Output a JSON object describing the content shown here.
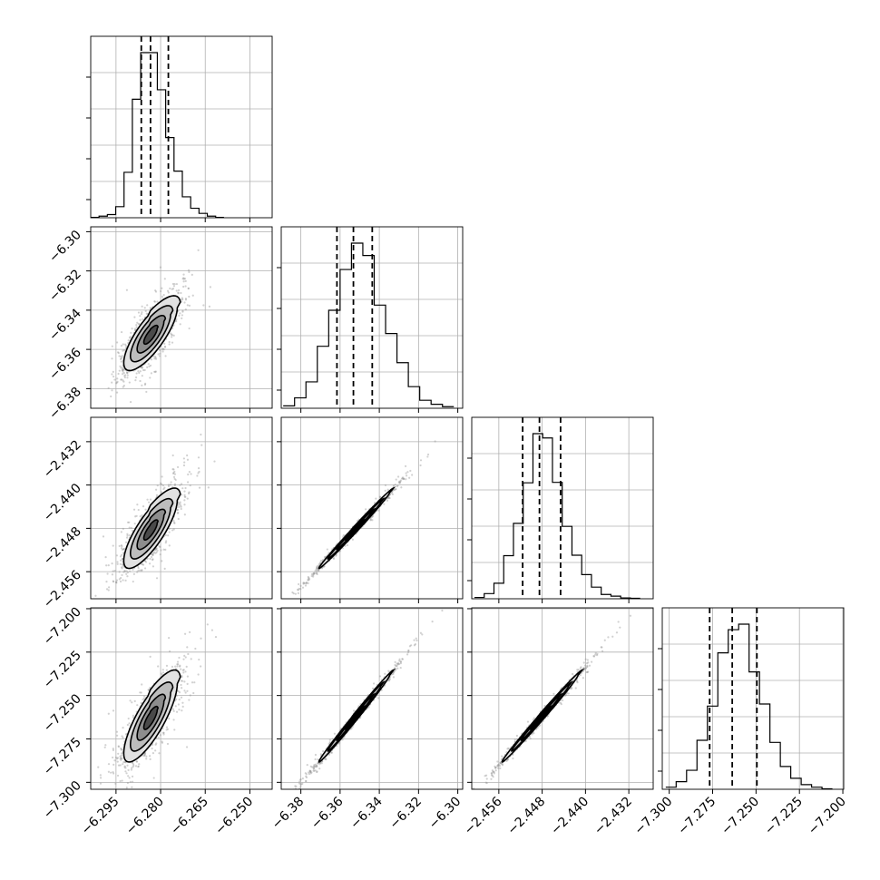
{
  "chart_data": {
    "type": "corner",
    "n_params": 4,
    "grid": true,
    "params": [
      {
        "range": [
          -6.3035,
          -6.2425
        ],
        "ticks": [
          -6.295,
          -6.28,
          -6.265,
          -6.25
        ],
        "tick_labels": [
          "−6.295",
          "−6.280",
          "−6.265",
          "−6.250"
        ],
        "quantiles": [
          -6.2865,
          -6.2834,
          -6.2774
        ],
        "mean": -6.2834,
        "std": 0.0045
      },
      {
        "range": [
          -6.39,
          -6.2975
        ],
        "ticks": [
          -6.38,
          -6.36,
          -6.34,
          -6.32,
          -6.3
        ],
        "tick_labels": [
          "−6.38",
          "−6.36",
          "−6.34",
          "−6.32",
          "−6.30"
        ],
        "quantiles": [
          -6.3616,
          -6.3532,
          -6.3436
        ],
        "mean": -6.3528,
        "std": 0.009
      },
      {
        "range": [
          -2.461,
          -2.4275
        ],
        "ticks": [
          -2.456,
          -2.448,
          -2.44,
          -2.432
        ],
        "tick_labels": [
          "−2.456",
          "−2.448",
          "−2.440",
          "−2.432"
        ],
        "quantiles": [
          -2.4516,
          -2.4485,
          -2.4446
        ],
        "mean": -2.4484,
        "std": 0.0035
      },
      {
        "range": [
          -7.304,
          -7.1995
        ],
        "ticks": [
          -7.3,
          -7.275,
          -7.25,
          -7.225,
          -7.2
        ],
        "tick_labels": [
          "−7.300",
          "−7.275",
          "−7.250",
          "−7.225",
          "−7.200"
        ],
        "quantiles": [
          -7.2767,
          -7.2637,
          -7.2495
        ],
        "mean": -7.2633,
        "std": 0.0125
      }
    ],
    "y_tick_labels_rows": {
      "1": [
        "−6.30",
        "−6.32",
        "−6.34",
        "−6.36",
        "−6.38"
      ],
      "2": [
        "−2.432",
        "−2.440",
        "−2.448",
        "−2.456"
      ],
      "3": [
        "−7.200",
        "−7.225",
        "−7.250",
        "−7.275",
        "−7.300"
      ]
    },
    "histograms": [
      {
        "param": 0,
        "bin_edges": [
          -6.3035,
          -6.3007,
          -6.2979,
          -6.2951,
          -6.2923,
          -6.2895,
          -6.2867,
          -6.2839,
          -6.2811,
          -6.2783,
          -6.2755,
          -6.2727,
          -6.2699,
          -6.2671,
          -6.2643,
          -6.2615,
          -6.2587
        ],
        "counts": [
          1,
          4,
          8,
          28,
          115,
          300,
          418,
          418,
          324,
          203,
          118,
          53,
          24,
          11,
          4,
          1
        ]
      },
      {
        "param": 1,
        "bin_edges": [
          -6.389,
          -6.3832,
          -6.3774,
          -6.3716,
          -6.3658,
          -6.36,
          -6.3542,
          -6.3484,
          -6.3426,
          -6.3368,
          -6.331,
          -6.3252,
          -6.3194,
          -6.3136,
          -6.3078,
          -6.302
        ],
        "counts": [
          6,
          26,
          66,
          155,
          245,
          347,
          413,
          382,
          258,
          187,
          114,
          54,
          20,
          10,
          4
        ]
      },
      {
        "param": 2,
        "bin_edges": [
          -2.4605,
          -2.4587,
          -2.4569,
          -2.4551,
          -2.4533,
          -2.4515,
          -2.4497,
          -2.4479,
          -2.4461,
          -2.4443,
          -2.4425,
          -2.4407,
          -2.4389,
          -2.4371,
          -2.4353,
          -2.4335,
          -2.4317,
          -2.4299
        ],
        "counts": [
          3,
          12,
          36,
          100,
          175,
          269,
          383,
          373,
          270,
          168,
          101,
          56,
          27,
          10,
          6,
          2,
          1
        ]
      },
      {
        "param": 3,
        "bin_edges": [
          -7.302,
          -7.296,
          -7.29,
          -7.284,
          -7.278,
          -7.272,
          -7.266,
          -7.26,
          -7.254,
          -7.248,
          -7.242,
          -7.236,
          -7.23,
          -7.224,
          -7.218,
          -7.212,
          -7.206
        ],
        "counts": [
          5,
          18,
          45,
          116,
          197,
          323,
          378,
          391,
          278,
          202,
          111,
          54,
          26,
          11,
          5,
          1
        ]
      }
    ],
    "pair_panels": [
      {
        "x": 0,
        "y": 1,
        "rho": 0.78
      },
      {
        "x": 0,
        "y": 2,
        "rho": 0.8
      },
      {
        "x": 0,
        "y": 3,
        "rho": 0.8
      },
      {
        "x": 1,
        "y": 2,
        "rho": 0.995
      },
      {
        "x": 1,
        "y": 3,
        "rho": 0.995
      },
      {
        "x": 2,
        "y": 3,
        "rho": 0.995
      }
    ],
    "contour_levels_sigma": [
      0.5,
      1.0,
      1.5,
      2.0
    ]
  }
}
